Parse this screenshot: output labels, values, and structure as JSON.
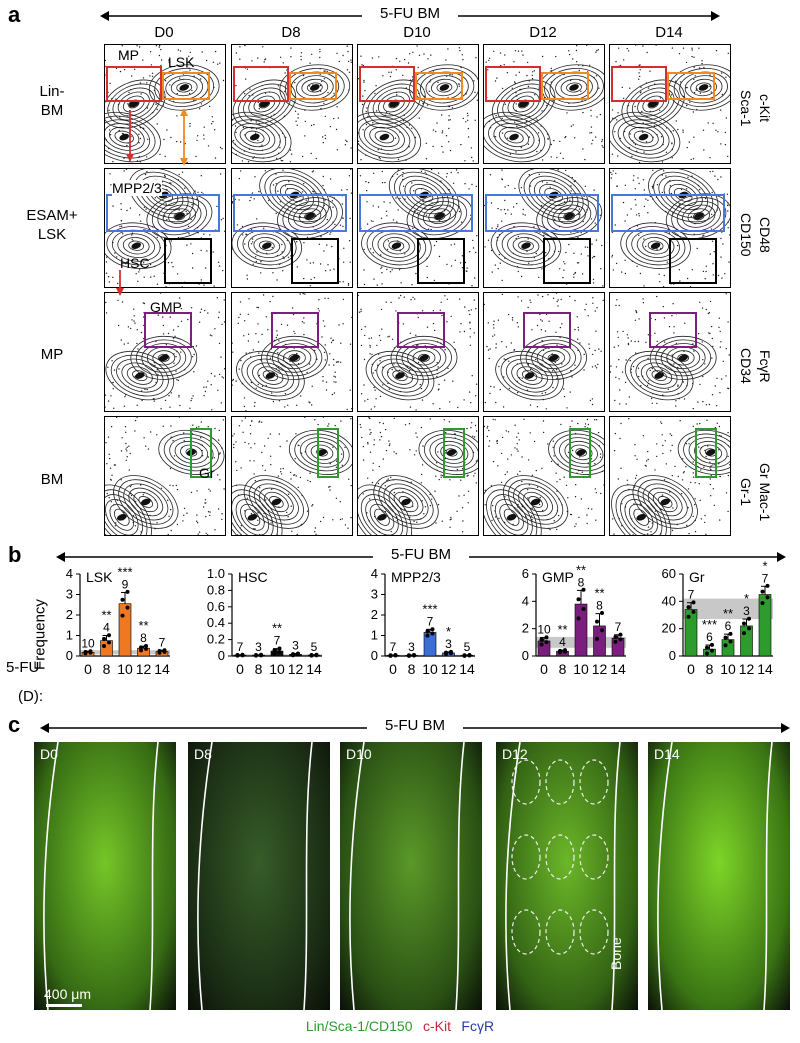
{
  "panel_a": {
    "label": "a",
    "title": "5-FU BM",
    "days": [
      "D0",
      "D8",
      "D10",
      "D12",
      "D14"
    ],
    "rows": [
      {
        "left": [
          "Lin-",
          "BM"
        ],
        "right": [
          "c-Kit",
          "Sca-1"
        ],
        "gates": [
          "MP",
          "LSK"
        ]
      },
      {
        "left": [
          "ESAM+",
          "LSK"
        ],
        "right": [
          "CD48",
          "CD150"
        ],
        "gates": [
          "MPP2/3",
          "HSC"
        ]
      },
      {
        "left": [
          "MP"
        ],
        "right": [
          "FcγR",
          "CD34"
        ],
        "gates": [
          "GMP"
        ]
      },
      {
        "left": [
          "BM"
        ],
        "right": [
          "Gr Mac-1",
          "Gr-1"
        ],
        "gates": [
          "Gr"
        ]
      }
    ],
    "gate_colors": {
      "MP": "#d32f2f",
      "LSK": "#f08a24",
      "MPP2/3": "#4a78d6",
      "HSC": "#000000",
      "GMP": "#7a1f7e",
      "Gr": "#2e9b2e"
    }
  },
  "panel_b": {
    "label": "b",
    "title": "5-FU BM",
    "ylabel": "Frequency",
    "xlabel": "(D):",
    "baseline_label": "5-FU",
    "x_ticks": [
      "0",
      "8",
      "10",
      "12",
      "14"
    ]
  },
  "chart_data": [
    {
      "type": "bar",
      "title": "LSK",
      "categories": [
        "0",
        "8",
        "10",
        "12",
        "14"
      ],
      "values": [
        0.18,
        0.75,
        2.55,
        0.38,
        0.22
      ],
      "errors": [
        0.05,
        0.25,
        0.55,
        0.1,
        0.06
      ],
      "n": [
        "10",
        "4",
        "9",
        "8",
        "7"
      ],
      "stars": [
        "",
        "**",
        "***",
        "**",
        ""
      ],
      "ylim": [
        0,
        4
      ],
      "yticks": [
        "0",
        "1",
        "2",
        "3",
        "4"
      ],
      "color": "#f07820",
      "band": [
        0.08,
        0.28
      ]
    },
    {
      "type": "bar",
      "title": "HSC",
      "categories": [
        "0",
        "8",
        "10",
        "12",
        "14"
      ],
      "values": [
        0.01,
        0.01,
        0.06,
        0.02,
        0.01
      ],
      "errors": [
        0.005,
        0.005,
        0.03,
        0.01,
        0.005
      ],
      "n": [
        "7",
        "3",
        "7",
        "3",
        "5"
      ],
      "stars": [
        "",
        "",
        "**",
        "",
        ""
      ],
      "ylim": [
        0,
        1.0
      ],
      "yticks": [
        "0",
        "0.2",
        "0.4",
        "0.6",
        "0.8",
        "1.0"
      ],
      "color": "#111111",
      "band": [
        0,
        0.02
      ]
    },
    {
      "type": "bar",
      "title": "MPP2/3",
      "categories": [
        "0",
        "8",
        "10",
        "12",
        "14"
      ],
      "values": [
        0.03,
        0.03,
        1.15,
        0.15,
        0.03
      ],
      "errors": [
        0.02,
        0.02,
        0.15,
        0.05,
        0.02
      ],
      "n": [
        "7",
        "3",
        "7",
        "3",
        "5"
      ],
      "stars": [
        "",
        "",
        "***",
        "*",
        ""
      ],
      "ylim": [
        0,
        4
      ],
      "yticks": [
        "0",
        "1",
        "2",
        "3",
        "4"
      ],
      "color": "#3b6fd4",
      "band": [
        0,
        0.06
      ]
    },
    {
      "type": "bar",
      "title": "GMP",
      "categories": [
        "0",
        "8",
        "10",
        "12",
        "14"
      ],
      "values": [
        1.1,
        0.35,
        3.8,
        2.2,
        1.3
      ],
      "errors": [
        0.25,
        0.08,
        1.0,
        0.9,
        0.25
      ],
      "n": [
        "10",
        "4",
        "8",
        "8",
        "7"
      ],
      "stars": [
        "",
        "**",
        "**",
        "**",
        ""
      ],
      "ylim": [
        0,
        6
      ],
      "yticks": [
        "0",
        "2",
        "4",
        "6"
      ],
      "color": "#7a1f7e",
      "band": [
        0.6,
        1.4
      ]
    },
    {
      "type": "bar",
      "title": "Gr",
      "categories": [
        "0",
        "8",
        "10",
        "12",
        "14"
      ],
      "values": [
        34,
        5,
        12,
        22,
        45
      ],
      "errors": [
        5,
        3,
        4,
        5,
        6
      ],
      "n": [
        "7",
        "6",
        "6",
        "3",
        "7"
      ],
      "stars": [
        "",
        "***",
        "**",
        "*",
        "*"
      ],
      "ylim": [
        0,
        60
      ],
      "yticks": [
        "0",
        "20",
        "40",
        "60"
      ],
      "color": "#2e9b2e",
      "band": [
        27,
        42
      ]
    }
  ],
  "panel_c": {
    "label": "c",
    "title": "5-FU BM",
    "days": [
      "D0",
      "D8",
      "D10",
      "D12",
      "D14"
    ],
    "scalebar": "400 μm",
    "bone_label": "Bone",
    "legend": [
      {
        "text": "Lin/Sca-1/CD150",
        "color": "#2e9b2e"
      },
      {
        "text": "c-Kit",
        "color": "#c0283c"
      },
      {
        "text": "FcγR",
        "color": "#2a3aa8"
      }
    ]
  }
}
